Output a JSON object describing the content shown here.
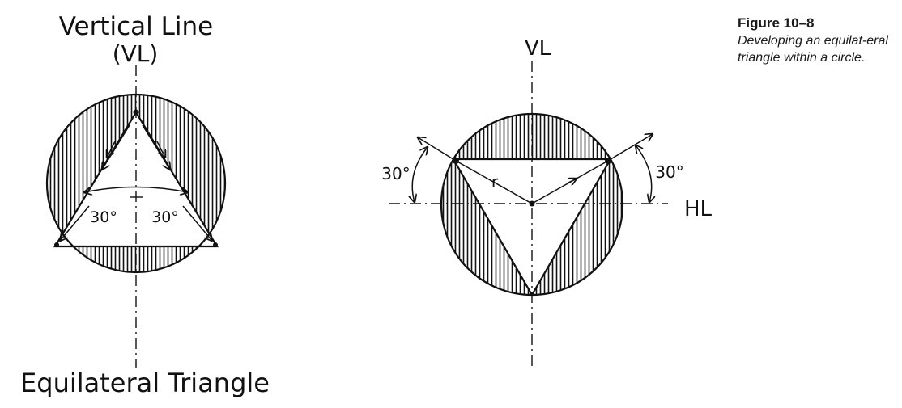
{
  "caption": {
    "figure_number": "Figure 10–8",
    "description": "Developing an equilat-eral triangle within a circle."
  },
  "left_diagram": {
    "top_label_line1": "Vertical Line",
    "top_label_line2": "(VL)",
    "angle_left": "30°",
    "angle_right": "30°",
    "bottom_label": "Equilateral Triangle"
  },
  "right_diagram": {
    "vl_label": "VL",
    "hl_label": "HL",
    "angle_left": "30°",
    "angle_right": "30°",
    "radius_label": "r"
  },
  "colors": {
    "ink": "#111111"
  }
}
